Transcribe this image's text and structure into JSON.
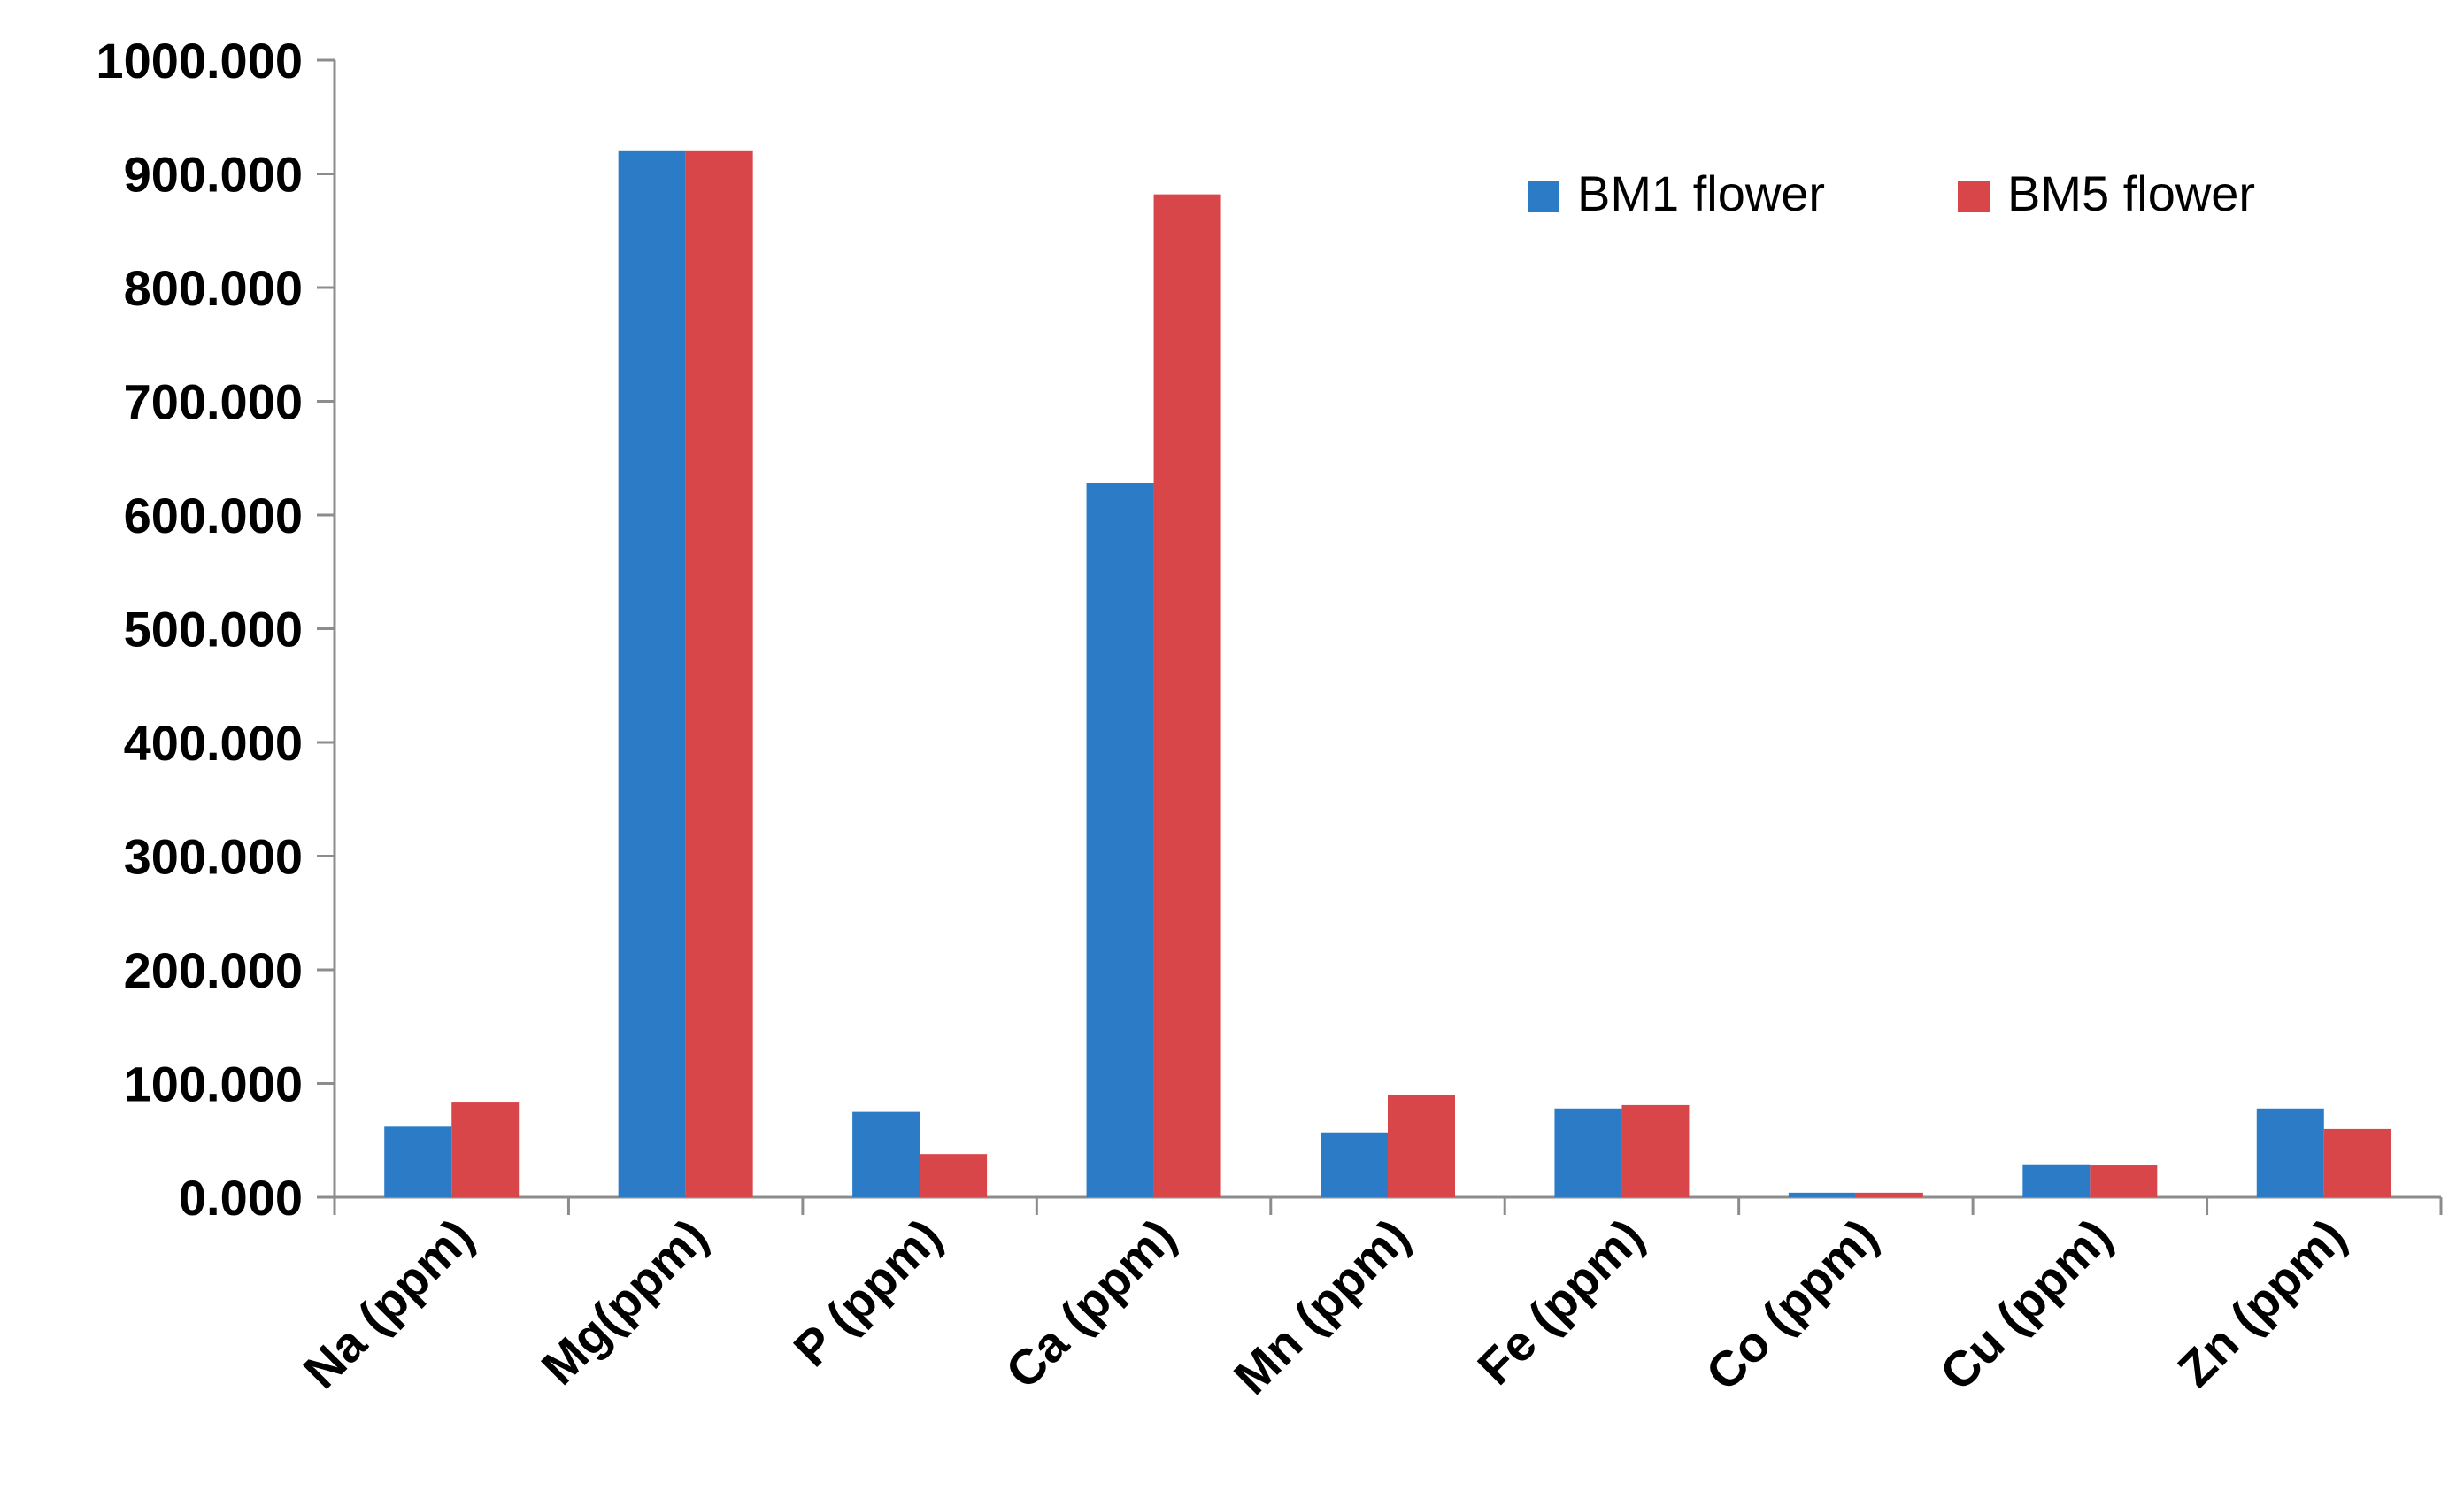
{
  "chart_data": {
    "type": "bar",
    "title": "",
    "xlabel": "",
    "ylabel": "",
    "ylim": [
      0,
      1000
    ],
    "yticks": [
      "0.000",
      "100.000",
      "200.000",
      "300.000",
      "400.000",
      "500.000",
      "600.000",
      "700.000",
      "800.000",
      "900.000",
      "1000.000"
    ],
    "categories": [
      "Na (ppm)",
      "Mg(ppm)",
      "P (ppm)",
      "Ca (ppm)",
      "Mn (ppm)",
      "Fe (ppm)",
      "Co (ppm)",
      "Cu (ppm)",
      "Zn (ppm)"
    ],
    "series": [
      {
        "name": "BM1 flower",
        "color": "#2B7BC6",
        "values": [
          62,
          920,
          75,
          628,
          57,
          78,
          4,
          29,
          78
        ]
      },
      {
        "name": "BM5 flower",
        "color": "#D9464A",
        "values": [
          84,
          920,
          38,
          882,
          90,
          81,
          4,
          28,
          60
        ]
      }
    ],
    "grid": false,
    "legend": "top-right"
  }
}
